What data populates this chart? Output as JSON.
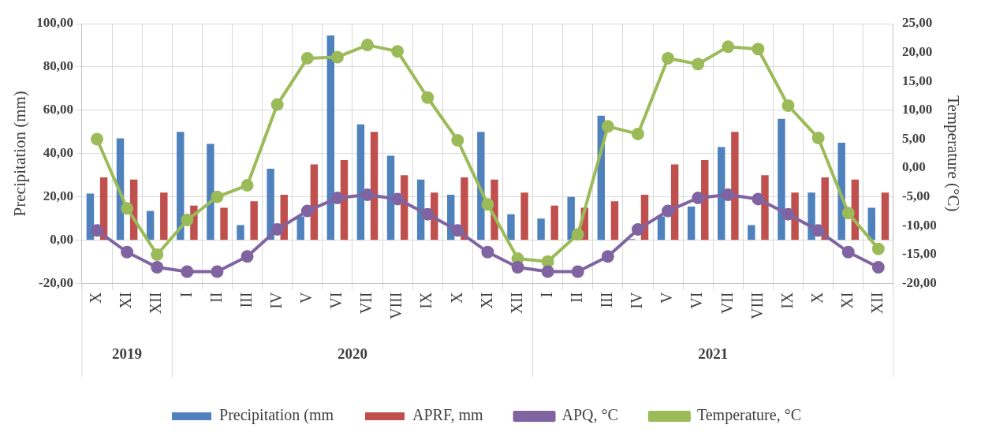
{
  "chart_data": {
    "type": "bar",
    "categories": [
      "X",
      "XI",
      "XII",
      "I",
      "II",
      "III",
      "IV",
      "V",
      "VI",
      "VII",
      "VIII",
      "IX",
      "X",
      "XI",
      "XII",
      "I",
      "II",
      "III",
      "IV",
      "V",
      "VI",
      "VII",
      "VIII",
      "IX",
      "X",
      "XI",
      "XII"
    ],
    "series": [
      {
        "name": "Precipitation (mm",
        "color": "#4f81bd",
        "values": [
          21.5,
          47,
          13.5,
          50,
          44.5,
          7,
          33,
          11,
          94.5,
          53.5,
          39,
          28,
          21,
          50,
          12,
          10,
          20,
          57.5,
          0.5,
          11,
          15.5,
          43,
          7,
          56,
          22,
          45,
          15
        ]
      },
      {
        "name": "APRF, mm",
        "color": "#c0504d",
        "values": [
          29,
          28,
          22,
          16,
          15,
          18,
          21,
          35,
          37,
          50,
          30,
          22,
          29,
          28,
          22,
          16,
          15,
          18,
          21,
          35,
          37,
          50,
          30,
          22,
          29,
          28,
          22
        ]
      },
      {
        "name": "APQ, °C",
        "type": "line",
        "color": "#8064a2",
        "values": [
          4.5,
          -5.5,
          -12.5,
          -14.5,
          -14.5,
          -7.5,
          5,
          13.5,
          19.5,
          21,
          19,
          12,
          4.5,
          -5.5,
          -12.5,
          -14.5,
          -14.5,
          -7.5,
          5,
          13.5,
          19.5,
          21,
          19,
          12,
          4.5,
          -5.5,
          -12.5
        ]
      },
      {
        "name": "Temperature, °C",
        "type": "line",
        "axis": "y2",
        "color": "#9bbb59",
        "values": [
          5,
          -7,
          -15,
          -9,
          -5,
          -3,
          11,
          19,
          19.2,
          21.3,
          20.2,
          12.2,
          4.8,
          -6.3,
          -15.7,
          -16.2,
          -11.5,
          7.2,
          5.9,
          19,
          18,
          21,
          20.6,
          10.8,
          5.2,
          -7.8,
          -14
        ]
      }
    ],
    "ylabel": "Precipitation (mm)",
    "y2label": "Temperature (°C)",
    "ylim": [
      -20,
      100
    ],
    "yticks": [
      {
        "value": -20,
        "label": "-20,00"
      },
      {
        "value": 0,
        "label": "0,00"
      },
      {
        "value": 20,
        "label": "20,00"
      },
      {
        "value": 40,
        "label": "40,00"
      },
      {
        "value": 60,
        "label": "60,00"
      },
      {
        "value": 80,
        "label": "80,00"
      },
      {
        "value": 100,
        "label": "100,00"
      }
    ],
    "y2lim": [
      -20,
      25
    ],
    "y2ticks": [
      {
        "value": -20,
        "label": "-20,00"
      },
      {
        "value": -15,
        "label": "-15,00"
      },
      {
        "value": -10,
        "label": "-10,00"
      },
      {
        "value": -5,
        "label": "-5,00"
      },
      {
        "value": 0,
        "label": "0,00"
      },
      {
        "value": 5,
        "label": "5,00"
      },
      {
        "value": 10,
        "label": "10,00"
      },
      {
        "value": 15,
        "label": "15,00"
      },
      {
        "value": 20,
        "label": "20,00"
      },
      {
        "value": 25,
        "label": "25,00"
      }
    ],
    "annotations": [
      "2019",
      "2020",
      "2021"
    ],
    "grid": true,
    "legend": "bottom",
    "marker": "circle",
    "line_style": "solid"
  }
}
